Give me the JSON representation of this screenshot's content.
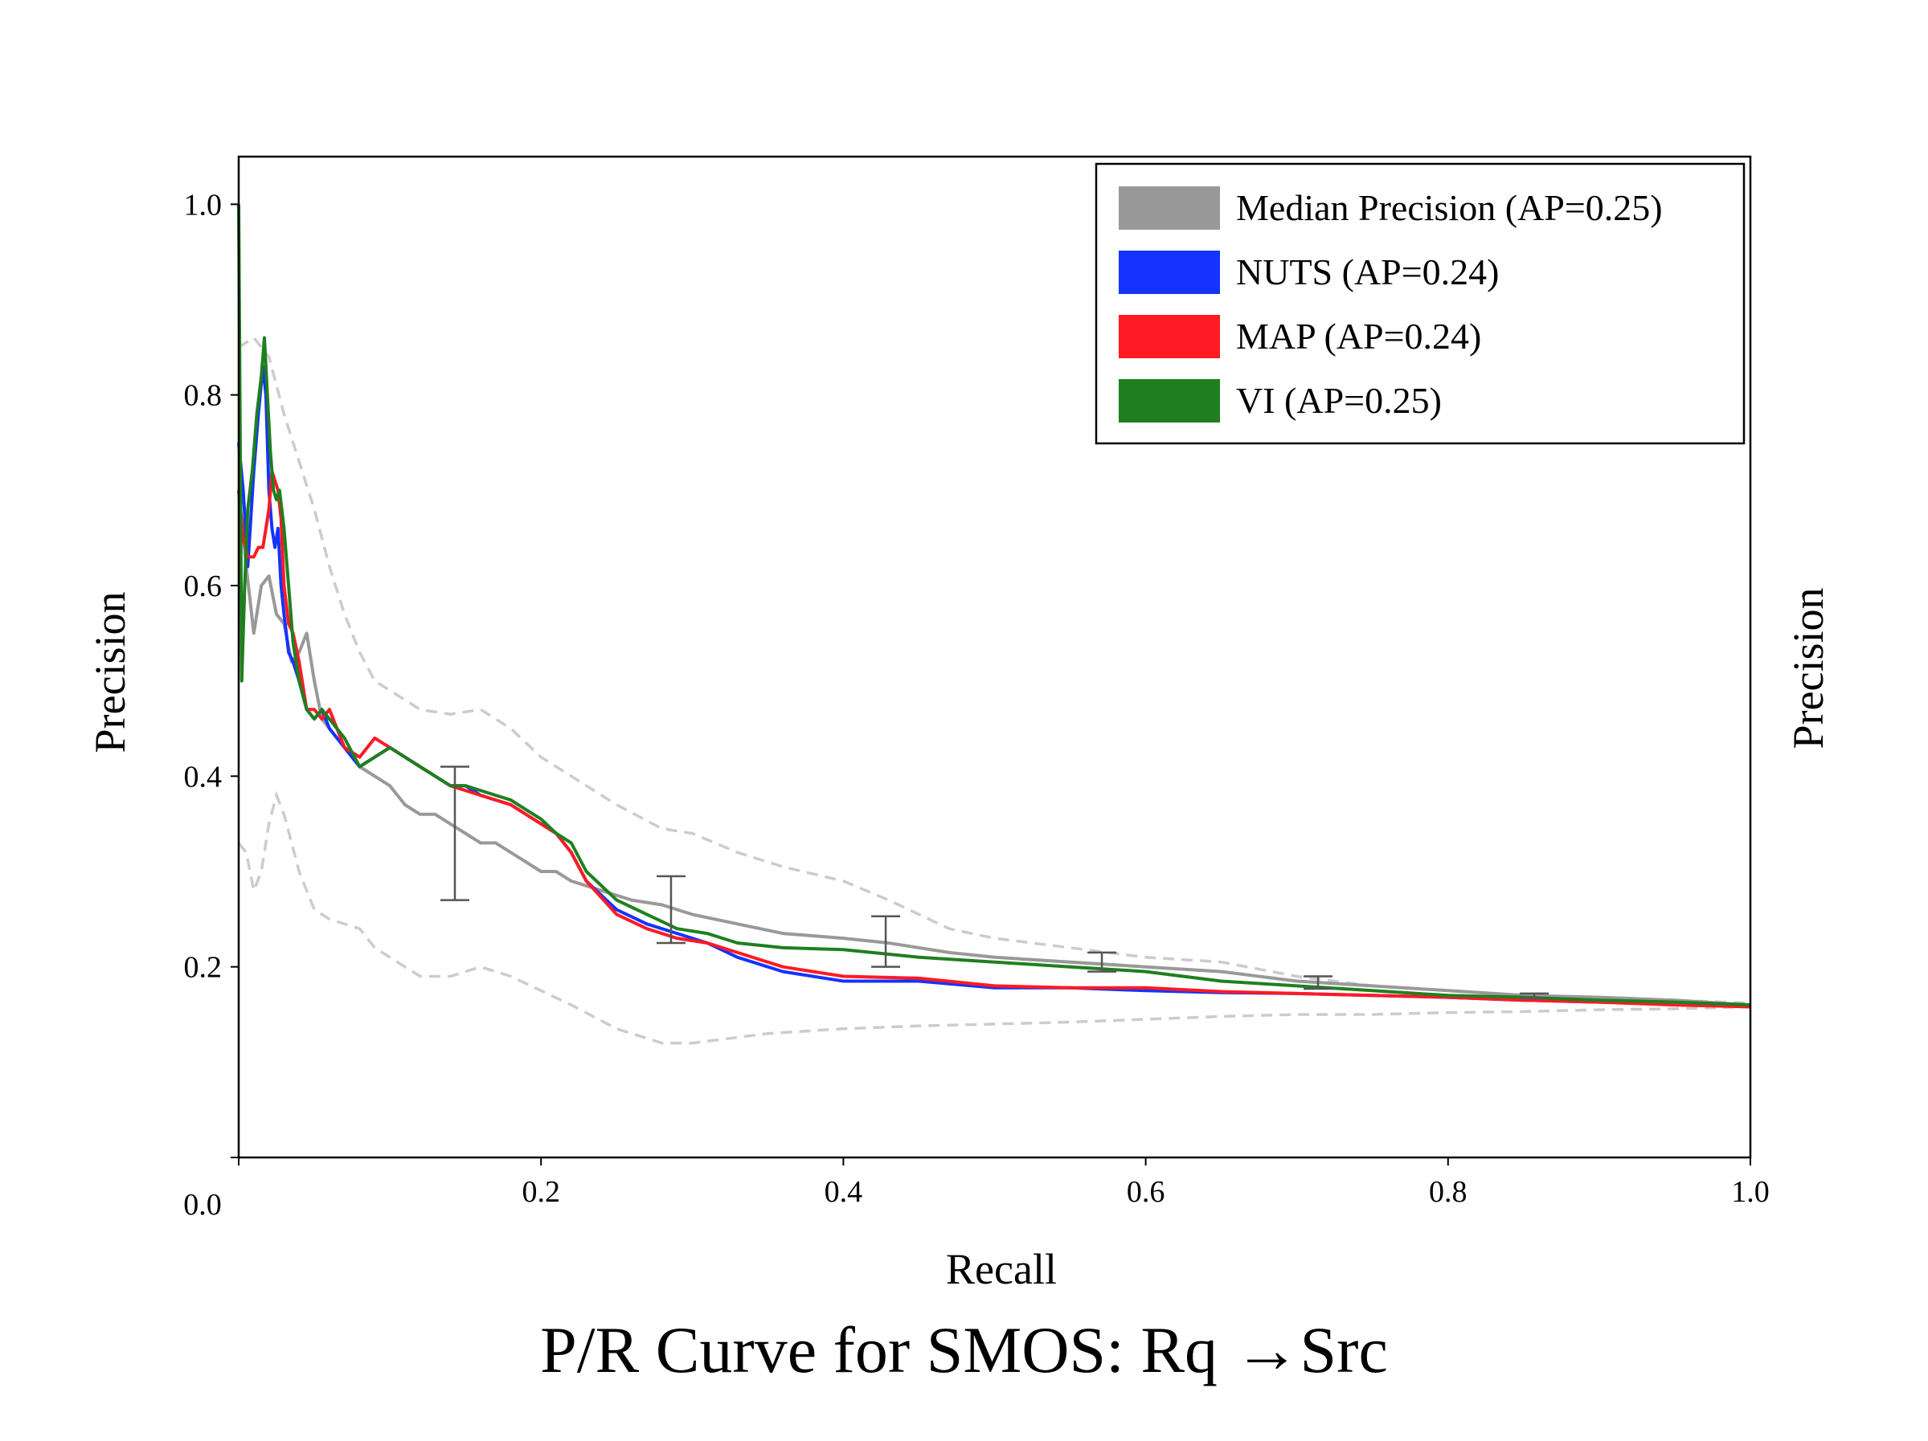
{
  "chart_data": {
    "type": "line",
    "title": "P/R Curve for SMOS: Rq →Src",
    "xlabel": "Recall",
    "ylabel": "Precision",
    "ylabel_right": "Precision",
    "xlim": [
      0.0,
      1.0
    ],
    "ylim": [
      0.0,
      1.05
    ],
    "x_ticks": [
      {
        "value": 0.0,
        "label": "0.0"
      },
      {
        "value": 0.2,
        "label": "0.2"
      },
      {
        "value": 0.4,
        "label": "0.4"
      },
      {
        "value": 0.6,
        "label": "0.6"
      },
      {
        "value": 0.8,
        "label": "0.8"
      },
      {
        "value": 1.0,
        "label": "1.0"
      }
    ],
    "y_ticks": [
      {
        "value": 0.2,
        "label": "0.2"
      },
      {
        "value": 0.4,
        "label": "0.4"
      },
      {
        "value": 0.6,
        "label": "0.6"
      },
      {
        "value": 0.8,
        "label": "0.8"
      },
      {
        "value": 1.0,
        "label": "1.0"
      }
    ],
    "grid": false,
    "legend_position": "top-right",
    "series": [
      {
        "name": "Median Precision (AP=0.25)",
        "color": "#999999",
        "x": [
          0.0,
          0.005,
          0.01,
          0.015,
          0.02,
          0.025,
          0.03,
          0.035,
          0.04,
          0.045,
          0.05,
          0.055,
          0.06,
          0.07,
          0.08,
          0.09,
          0.1,
          0.11,
          0.12,
          0.13,
          0.14,
          0.15,
          0.16,
          0.17,
          0.18,
          0.19,
          0.2,
          0.21,
          0.22,
          0.24,
          0.26,
          0.28,
          0.3,
          0.33,
          0.36,
          0.4,
          0.43,
          0.47,
          0.5,
          0.55,
          0.6,
          0.65,
          0.7,
          0.75,
          0.8,
          0.85,
          0.9,
          0.95,
          1.0
        ],
        "y": [
          0.7,
          0.62,
          0.55,
          0.6,
          0.61,
          0.57,
          0.56,
          0.52,
          0.53,
          0.55,
          0.5,
          0.46,
          0.45,
          0.43,
          0.41,
          0.4,
          0.39,
          0.37,
          0.36,
          0.36,
          0.35,
          0.34,
          0.33,
          0.33,
          0.32,
          0.31,
          0.3,
          0.3,
          0.29,
          0.28,
          0.27,
          0.265,
          0.255,
          0.245,
          0.235,
          0.23,
          0.225,
          0.215,
          0.21,
          0.205,
          0.2,
          0.195,
          0.185,
          0.18,
          0.175,
          0.17,
          0.168,
          0.165,
          0.16
        ]
      },
      {
        "name": "NUTS (AP=0.24)",
        "color": "#1433ff",
        "x": [
          0.0,
          0.003,
          0.006,
          0.01,
          0.013,
          0.016,
          0.018,
          0.02,
          0.022,
          0.024,
          0.026,
          0.028,
          0.03,
          0.033,
          0.036,
          0.04,
          0.045,
          0.05,
          0.055,
          0.06,
          0.065,
          0.07,
          0.08,
          0.09,
          0.1,
          0.11,
          0.12,
          0.13,
          0.14,
          0.15,
          0.16,
          0.17,
          0.18,
          0.19,
          0.2,
          0.21,
          0.22,
          0.23,
          0.25,
          0.27,
          0.29,
          0.31,
          0.33,
          0.36,
          0.4,
          0.45,
          0.5,
          0.55,
          0.6,
          0.65,
          0.7,
          0.75,
          0.8,
          0.85,
          0.9,
          0.95,
          1.0
        ],
        "y": [
          0.75,
          0.7,
          0.62,
          0.72,
          0.78,
          0.83,
          0.8,
          0.7,
          0.66,
          0.64,
          0.66,
          0.6,
          0.57,
          0.53,
          0.52,
          0.5,
          0.47,
          0.46,
          0.47,
          0.45,
          0.44,
          0.43,
          0.41,
          0.42,
          0.43,
          0.42,
          0.41,
          0.4,
          0.39,
          0.39,
          0.38,
          0.375,
          0.37,
          0.36,
          0.35,
          0.34,
          0.32,
          0.29,
          0.26,
          0.245,
          0.235,
          0.225,
          0.21,
          0.195,
          0.185,
          0.185,
          0.178,
          0.178,
          0.175,
          0.173,
          0.172,
          0.17,
          0.168,
          0.165,
          0.163,
          0.162,
          0.16
        ]
      },
      {
        "name": "MAP (AP=0.24)",
        "color": "#ff1a24",
        "x": [
          0.0,
          0.003,
          0.006,
          0.01,
          0.013,
          0.016,
          0.018,
          0.02,
          0.022,
          0.024,
          0.026,
          0.028,
          0.03,
          0.033,
          0.036,
          0.04,
          0.045,
          0.05,
          0.055,
          0.06,
          0.065,
          0.07,
          0.08,
          0.09,
          0.1,
          0.11,
          0.12,
          0.13,
          0.14,
          0.15,
          0.16,
          0.17,
          0.18,
          0.19,
          0.2,
          0.21,
          0.22,
          0.23,
          0.25,
          0.27,
          0.29,
          0.31,
          0.33,
          0.36,
          0.4,
          0.45,
          0.5,
          0.55,
          0.6,
          0.65,
          0.7,
          0.75,
          0.8,
          0.85,
          0.9,
          0.95,
          1.0
        ],
        "y": [
          0.7,
          0.65,
          0.63,
          0.63,
          0.64,
          0.64,
          0.66,
          0.68,
          0.72,
          0.71,
          0.7,
          0.67,
          0.6,
          0.56,
          0.55,
          0.52,
          0.47,
          0.47,
          0.46,
          0.47,
          0.45,
          0.43,
          0.42,
          0.44,
          0.43,
          0.42,
          0.41,
          0.4,
          0.39,
          0.385,
          0.38,
          0.375,
          0.37,
          0.36,
          0.35,
          0.34,
          0.32,
          0.29,
          0.255,
          0.24,
          0.23,
          0.225,
          0.215,
          0.2,
          0.19,
          0.188,
          0.18,
          0.178,
          0.178,
          0.174,
          0.172,
          0.17,
          0.168,
          0.165,
          0.163,
          0.16,
          0.158
        ]
      },
      {
        "name": "VI (AP=0.25)",
        "color": "#1f7f1f",
        "x": [
          0.0,
          0.002,
          0.004,
          0.006,
          0.009,
          0.012,
          0.015,
          0.017,
          0.019,
          0.021,
          0.023,
          0.025,
          0.027,
          0.03,
          0.033,
          0.036,
          0.04,
          0.045,
          0.05,
          0.055,
          0.06,
          0.065,
          0.07,
          0.08,
          0.09,
          0.1,
          0.11,
          0.12,
          0.13,
          0.14,
          0.15,
          0.16,
          0.17,
          0.18,
          0.19,
          0.2,
          0.21,
          0.22,
          0.23,
          0.25,
          0.27,
          0.29,
          0.31,
          0.33,
          0.36,
          0.4,
          0.45,
          0.5,
          0.55,
          0.6,
          0.65,
          0.7,
          0.75,
          0.8,
          0.85,
          0.9,
          0.95,
          1.0
        ],
        "y": [
          1.0,
          0.5,
          0.6,
          0.68,
          0.72,
          0.78,
          0.82,
          0.86,
          0.8,
          0.74,
          0.7,
          0.69,
          0.7,
          0.66,
          0.6,
          0.54,
          0.5,
          0.47,
          0.46,
          0.47,
          0.46,
          0.45,
          0.44,
          0.41,
          0.42,
          0.43,
          0.42,
          0.41,
          0.4,
          0.39,
          0.39,
          0.385,
          0.38,
          0.375,
          0.365,
          0.355,
          0.34,
          0.33,
          0.3,
          0.27,
          0.255,
          0.24,
          0.235,
          0.225,
          0.22,
          0.218,
          0.21,
          0.205,
          0.2,
          0.195,
          0.185,
          0.18,
          0.175,
          0.17,
          0.168,
          0.165,
          0.163,
          0.16
        ]
      }
    ],
    "bounds": {
      "color": "#cccccc",
      "style": "dashed",
      "upper": {
        "x": [
          0.0,
          0.01,
          0.02,
          0.03,
          0.04,
          0.05,
          0.06,
          0.07,
          0.08,
          0.09,
          0.1,
          0.12,
          0.14,
          0.16,
          0.18,
          0.2,
          0.22,
          0.25,
          0.28,
          0.3,
          0.33,
          0.36,
          0.4,
          0.43,
          0.47,
          0.5,
          0.55,
          0.6,
          0.65,
          0.7,
          0.75,
          0.8,
          0.85,
          0.9,
          0.95,
          1.0
        ],
        "y": [
          0.85,
          0.86,
          0.84,
          0.78,
          0.73,
          0.68,
          0.62,
          0.57,
          0.53,
          0.5,
          0.49,
          0.47,
          0.465,
          0.47,
          0.45,
          0.42,
          0.4,
          0.37,
          0.345,
          0.34,
          0.32,
          0.305,
          0.29,
          0.27,
          0.24,
          0.23,
          0.22,
          0.21,
          0.205,
          0.19,
          0.18,
          0.175,
          0.17,
          0.168,
          0.165,
          0.162
        ]
      },
      "lower": {
        "x": [
          0.0,
          0.005,
          0.01,
          0.015,
          0.02,
          0.025,
          0.03,
          0.04,
          0.05,
          0.06,
          0.07,
          0.08,
          0.09,
          0.1,
          0.12,
          0.14,
          0.16,
          0.18,
          0.2,
          0.22,
          0.25,
          0.28,
          0.3,
          0.35,
          0.4,
          0.45,
          0.5,
          0.55,
          0.6,
          0.65,
          0.7,
          0.75,
          0.8,
          0.85,
          0.9,
          0.95,
          1.0
        ],
        "y": [
          0.33,
          0.32,
          0.28,
          0.3,
          0.35,
          0.38,
          0.36,
          0.3,
          0.26,
          0.25,
          0.245,
          0.24,
          0.22,
          0.21,
          0.19,
          0.19,
          0.2,
          0.19,
          0.175,
          0.16,
          0.135,
          0.12,
          0.12,
          0.13,
          0.135,
          0.138,
          0.14,
          0.142,
          0.145,
          0.148,
          0.15,
          0.15,
          0.152,
          0.153,
          0.155,
          0.156,
          0.158
        ]
      }
    },
    "error_bars": [
      {
        "x": 0.143,
        "low": 0.27,
        "high": 0.41
      },
      {
        "x": 0.286,
        "low": 0.225,
        "high": 0.295
      },
      {
        "x": 0.428,
        "low": 0.2,
        "high": 0.253
      },
      {
        "x": 0.571,
        "low": 0.195,
        "high": 0.215
      },
      {
        "x": 0.714,
        "low": 0.177,
        "high": 0.19
      },
      {
        "x": 0.857,
        "low": 0.167,
        "high": 0.172
      }
    ]
  }
}
